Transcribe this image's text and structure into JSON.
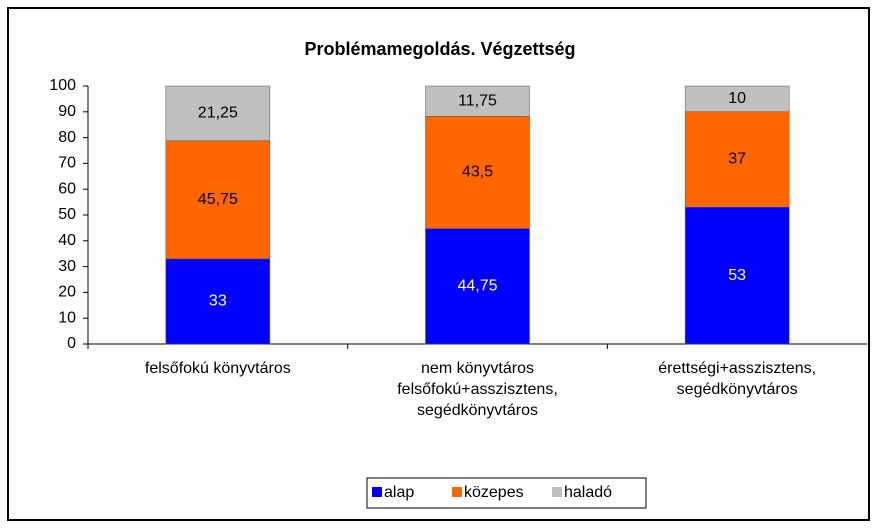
{
  "chart_data": {
    "type": "stacked_bar",
    "title": "Problémamegoldás. Végzettség",
    "categories": [
      "felsőfokú könyvtáros",
      "nem könyvtáros\nfelsőfokú+asszisztens,\nsegédkönyvtáros",
      "érettségi+asszisztens,\nsegédkönyvtáros"
    ],
    "series": [
      {
        "name": "alap",
        "color": "#0000ff",
        "values": [
          33,
          44.75,
          53
        ],
        "value_labels": [
          "33",
          "44,75",
          "53"
        ]
      },
      {
        "name": "közepes",
        "color": "#ff6600",
        "values": [
          45.75,
          43.5,
          37
        ],
        "value_labels": [
          "45,75",
          "43,5",
          "37"
        ]
      },
      {
        "name": "haladó",
        "color": "#c0c0c0",
        "values": [
          21.25,
          11.75,
          10
        ],
        "value_labels": [
          "21,25",
          "11,75",
          "10"
        ]
      }
    ],
    "ylim": [
      0,
      100
    ],
    "yticks": [
      0,
      10,
      20,
      30,
      40,
      50,
      60,
      70,
      80,
      90,
      100
    ],
    "grid": false,
    "legend": "bottom"
  }
}
